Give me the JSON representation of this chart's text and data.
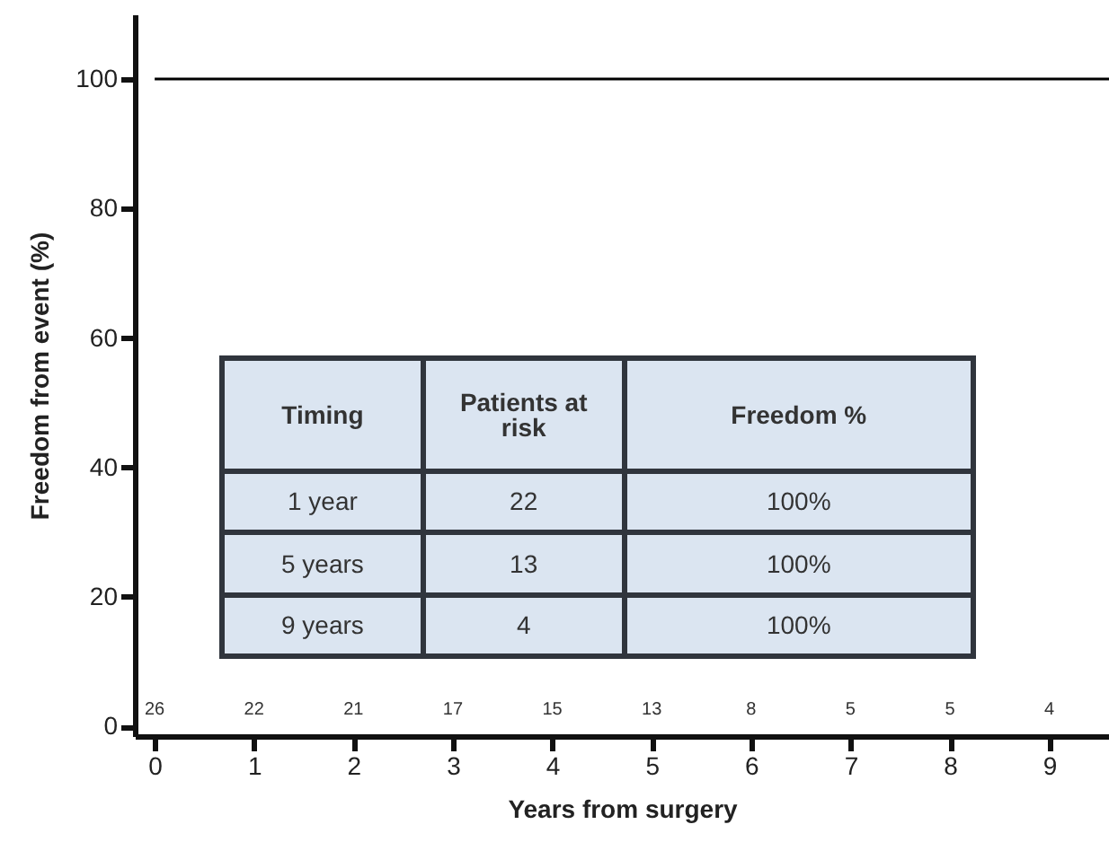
{
  "chart_data": [
    {
      "type": "step",
      "xlabel": "Years from surgery",
      "ylabel": "Freedom from event (%)",
      "x": [
        0,
        9.6
      ],
      "series": [
        {
          "color": "#000000",
          "values": [
            100,
            100
          ]
        }
      ],
      "xlim": [
        -0.2,
        9.6
      ],
      "ylim": [
        -1.5,
        110
      ],
      "xticks": [
        0,
        1,
        2,
        3,
        4,
        5,
        6,
        7,
        8,
        9
      ],
      "yticks": [
        0,
        20,
        40,
        60,
        80,
        100
      ],
      "marker": "none",
      "line_style": "solid",
      "annotations": [
        "26",
        "22",
        "21",
        "17",
        "15",
        "13",
        "8",
        "5",
        "5",
        "4"
      ]
    },
    {
      "type": "other",
      "annotations": [
        "Timing",
        "Patients at risk",
        "Freedom %",
        "1 year",
        "22",
        "100%",
        "5 years",
        "13",
        "100%",
        "9 years",
        "4",
        "100%"
      ]
    }
  ]
}
